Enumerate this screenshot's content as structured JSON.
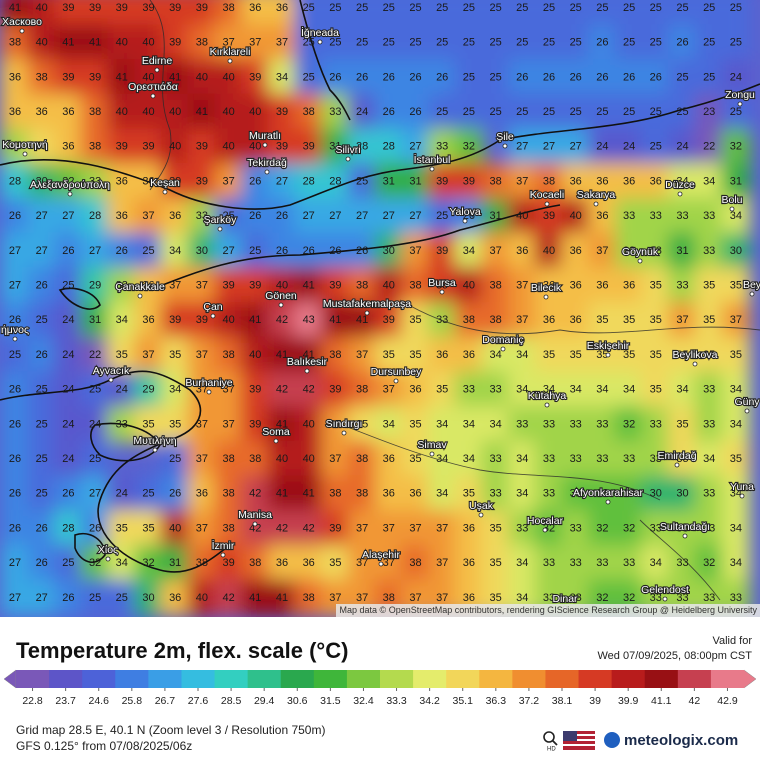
{
  "map": {
    "grid": [
      [
        41,
        40,
        39,
        39,
        39,
        39,
        39,
        39,
        38,
        36,
        36,
        25,
        25,
        25,
        25,
        25,
        25,
        25,
        25,
        25,
        25,
        25,
        25,
        25,
        25,
        25,
        25,
        25
      ],
      [
        38,
        40,
        41,
        41,
        40,
        40,
        39,
        38,
        37,
        37,
        37,
        25,
        25,
        25,
        25,
        25,
        25,
        25,
        25,
        25,
        25,
        25,
        26,
        25,
        25,
        26,
        25,
        25
      ],
      [
        36,
        38,
        39,
        39,
        41,
        40,
        41,
        40,
        40,
        39,
        34,
        25,
        26,
        26,
        26,
        26,
        26,
        25,
        25,
        26,
        26,
        26,
        26,
        26,
        26,
        25,
        25,
        24
      ],
      [
        36,
        36,
        36,
        38,
        40,
        40,
        40,
        41,
        40,
        40,
        39,
        38,
        33,
        24,
        26,
        26,
        25,
        25,
        25,
        25,
        25,
        25,
        25,
        25,
        25,
        25,
        23,
        25
      ],
      [
        33,
        35,
        36,
        38,
        39,
        39,
        40,
        39,
        40,
        40,
        39,
        39,
        31,
        28,
        28,
        27,
        33,
        32,
        null,
        27,
        27,
        27,
        24,
        24,
        25,
        24,
        22,
        32
      ],
      [
        28,
        30,
        32,
        33,
        36,
        36,
        39,
        39,
        37,
        26,
        27,
        28,
        28,
        25,
        31,
        31,
        39,
        39,
        38,
        37,
        38,
        36,
        36,
        36,
        36,
        34,
        34,
        31
      ],
      [
        26,
        27,
        27,
        28,
        36,
        37,
        36,
        33,
        25,
        26,
        26,
        27,
        27,
        27,
        27,
        27,
        25,
        26,
        31,
        40,
        39,
        40,
        36,
        33,
        33,
        33,
        33,
        34
      ],
      [
        27,
        27,
        26,
        27,
        26,
        25,
        34,
        30,
        27,
        25,
        26,
        26,
        26,
        26,
        30,
        37,
        39,
        34,
        37,
        36,
        40,
        36,
        37,
        33,
        33,
        31,
        33,
        30
      ],
      [
        27,
        26,
        25,
        29,
        33,
        36,
        37,
        37,
        39,
        39,
        40,
        41,
        39,
        38,
        40,
        38,
        39,
        40,
        38,
        37,
        36,
        36,
        36,
        36,
        35,
        33,
        35,
        35
      ],
      [
        26,
        25,
        24,
        31,
        34,
        36,
        39,
        39,
        40,
        41,
        42,
        43,
        41,
        41,
        39,
        35,
        33,
        38,
        38,
        37,
        36,
        36,
        35,
        35,
        35,
        37,
        35,
        37
      ],
      [
        25,
        26,
        24,
        22,
        35,
        37,
        35,
        37,
        38,
        40,
        41,
        41,
        38,
        37,
        35,
        35,
        36,
        36,
        34,
        34,
        35,
        35,
        35,
        35,
        35,
        35,
        35,
        35
      ],
      [
        26,
        25,
        24,
        25,
        24,
        29,
        34,
        37,
        37,
        39,
        42,
        42,
        39,
        38,
        37,
        36,
        35,
        33,
        33,
        34,
        34,
        34,
        34,
        34,
        35,
        34,
        33,
        34
      ],
      [
        26,
        25,
        24,
        24,
        33,
        35,
        35,
        37,
        37,
        39,
        41,
        40,
        37,
        35,
        34,
        35,
        34,
        34,
        34,
        33,
        33,
        33,
        33,
        32,
        33,
        35,
        33,
        34
      ],
      [
        26,
        25,
        24,
        25,
        null,
        null,
        25,
        37,
        38,
        38,
        40,
        40,
        37,
        38,
        36,
        35,
        34,
        34,
        33,
        34,
        33,
        33,
        33,
        33,
        33,
        35,
        34,
        35
      ],
      [
        26,
        25,
        26,
        27,
        24,
        25,
        26,
        36,
        38,
        42,
        41,
        41,
        38,
        38,
        36,
        36,
        34,
        35,
        33,
        34,
        33,
        32,
        32,
        32,
        30,
        30,
        33,
        34
      ],
      [
        26,
        26,
        28,
        26,
        35,
        35,
        40,
        37,
        38,
        42,
        42,
        42,
        39,
        37,
        37,
        37,
        37,
        36,
        35,
        33,
        32,
        33,
        32,
        32,
        33,
        33,
        33,
        34
      ],
      [
        27,
        26,
        25,
        32,
        34,
        32,
        31,
        38,
        39,
        38,
        36,
        36,
        35,
        37,
        37,
        38,
        37,
        36,
        35,
        34,
        33,
        33,
        33,
        33,
        34,
        33,
        32,
        34
      ],
      [
        27,
        27,
        26,
        25,
        25,
        30,
        36,
        40,
        42,
        41,
        41,
        38,
        37,
        37,
        38,
        37,
        37,
        36,
        35,
        34,
        33,
        33,
        32,
        32,
        33,
        33,
        33,
        33
      ]
    ],
    "places": [
      "Хасково",
      "Kırklareli",
      "İğneada",
      "Edirne",
      "Ορεστιάδα",
      "Muratlı",
      "Κομοτηνή",
      "Tekirdağ",
      "Silivri",
      "İstanbul",
      "Şile",
      "Zongu",
      "Αλεξανδρούπολη",
      "Keşan",
      "Kocaeli",
      "Sakarya",
      "Düzce",
      "Bolu",
      "Yalova",
      "Şarköy",
      "Göynük",
      "Çanakkale",
      "Bursa",
      "Bilecik",
      "Gönen",
      "Mustafakemalpaşa",
      "Çan",
      "Bey",
      "ήμνος",
      "Domaniç",
      "Eskişehir",
      "Beylikova",
      "Balıkesir",
      "Ayvacık",
      "Dursunbey",
      "Burhaniye",
      "Kütahya",
      "Güny",
      "Sındırgı",
      "Μυτιλήνη",
      "Soma",
      "Simav",
      "Emirdağ",
      "Yuna",
      "Afyonkarahisar",
      "Uşak",
      "Manisa",
      "Hocalar",
      "Sultandağı",
      "İzmir",
      "Χίος",
      "Alaşehir",
      "Gelendost",
      "Dinar"
    ],
    "attribution": "Map data © OpenStreetMap contributors, rendering GIScience Research Group @ Heidelberg University"
  },
  "footer": {
    "title": "Temperature 2m, flex. scale (°C)",
    "valid_label": "Valid for",
    "valid_time": "Wed 07/09/2025, 08:00pm CST",
    "legend": {
      "ticks": [
        22.8,
        23.7,
        24.6,
        25.8,
        26.7,
        27.6,
        28.5,
        29.4,
        30.6,
        31.5,
        32.4,
        33.3,
        34.2,
        35.1,
        36.3,
        37.2,
        38.1,
        39,
        39.9,
        41.1,
        42,
        42.9
      ],
      "colors": [
        "#7a58b8",
        "#5d55c8",
        "#4d62d8",
        "#3f7ee2",
        "#3a9ee6",
        "#35bde0",
        "#33cfc0",
        "#2fc08c",
        "#2aa84e",
        "#3fb63a",
        "#7cc840",
        "#b4da4e",
        "#e4ec6c",
        "#f2d65a",
        "#f4b640",
        "#f08e30",
        "#e66628",
        "#d63a24",
        "#b81c1c",
        "#981014",
        "#c64050",
        "#e87a8a"
      ]
    },
    "grid_info": "Grid map 28.5 E, 40.1 N (Zoom level 3 / Resolution 750m)",
    "model_info": "GFS 0.125° from 07/08/2025/06z",
    "brand": "meteologix.com"
  }
}
